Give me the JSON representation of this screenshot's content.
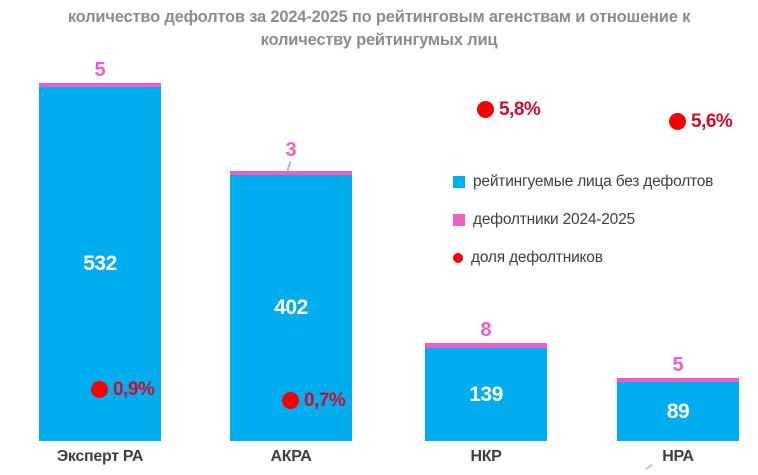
{
  "header": {
    "title_lines": [
      "количество дефолтов за 2024-2025 по рейтинговым агенствам и отношение к",
      "количеству рейтингумых лиц"
    ]
  },
  "legend": {
    "items": [
      {
        "label": "рейтингуемые лица без дефолтов",
        "marker": "blue-square"
      },
      {
        "label": "дефолтники 2024-2025",
        "marker": "pink-square"
      },
      {
        "label": "доля дефолтников",
        "marker": "red-circle"
      }
    ]
  },
  "colors": {
    "blue": "#00AEEF",
    "pink": "#EE5EC3",
    "red_dot": "#F80000",
    "red_text": "#C8102E",
    "title_gray": "#8C8C8C",
    "label_dark": "#3F3F3F",
    "bar_value_white": "#FFFFFF"
  },
  "chart_data": {
    "type": "bar",
    "stacked": true,
    "title": "количество дефолтов за 2024-2025 по рейтинговым агенствам и отношение к количеству рейтингумых лиц",
    "categories": [
      "Эксперт РА",
      "АКРА",
      "НКР",
      "НРА"
    ],
    "series": [
      {
        "name": "рейтингуемые лица без дефолтов",
        "values": [
          532,
          402,
          139,
          89
        ]
      },
      {
        "name": "дефолтники 2024-2025",
        "values": [
          5,
          3,
          8,
          5
        ]
      },
      {
        "name": "доля дефолтников",
        "values_percent": [
          0.9,
          0.7,
          5.8,
          5.6
        ],
        "labels": [
          "0,9%",
          "0,7%",
          "5,8%",
          "5,6%"
        ]
      }
    ],
    "value_axis": {
      "hidden": true,
      "implied_max": 560
    },
    "secondary_axis": {
      "hidden": true,
      "unit": "%",
      "implied_max": 6.4
    },
    "grid": false,
    "legend_position": "center-right"
  }
}
